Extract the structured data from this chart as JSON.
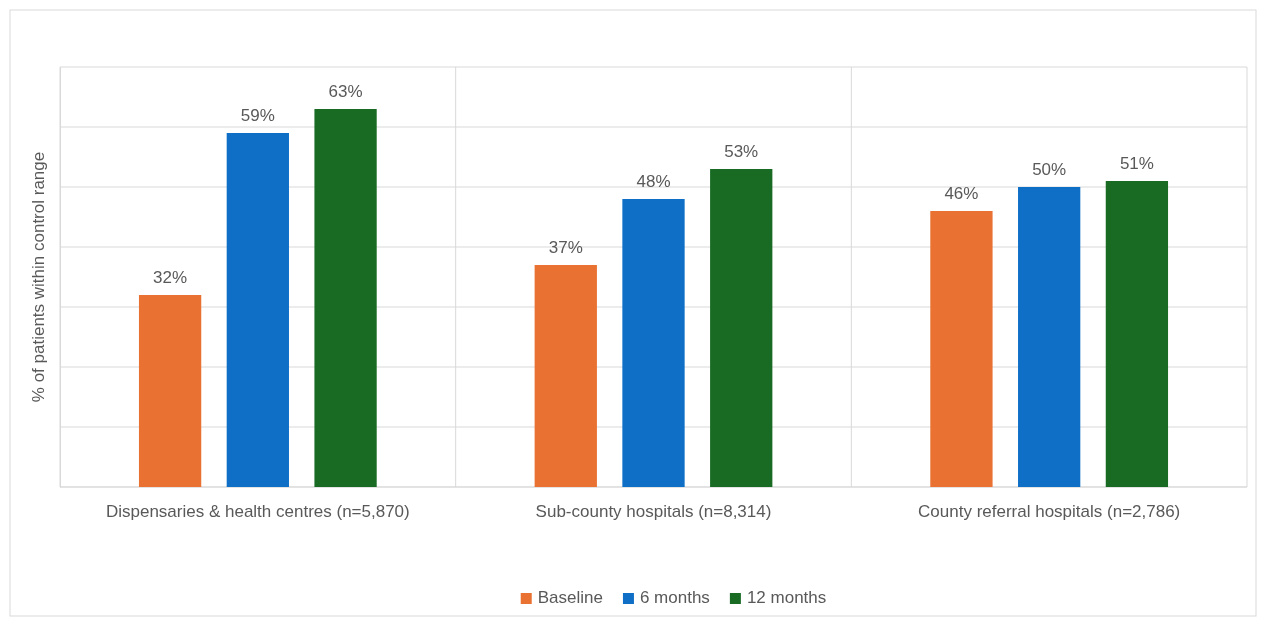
{
  "chart_data": {
    "type": "bar",
    "ylabel": "% of patients within control range",
    "categories": [
      "Dispensaries & health centres (n=5,870)",
      "Sub-county hospitals (n=8,314)",
      "County referral hospitals (n=2,786)"
    ],
    "series": [
      {
        "name": "Baseline",
        "color": "#e97132",
        "values": [
          32,
          37,
          46
        ],
        "value_labels": [
          "32%",
          "37%",
          "46%"
        ]
      },
      {
        "name": "6 months",
        "color": "#0f6fc6",
        "values": [
          59,
          48,
          50
        ],
        "value_labels": [
          "59%",
          "48%",
          "50%"
        ]
      },
      {
        "name": "12 months",
        "color": "#196b24",
        "values": [
          63,
          53,
          51
        ],
        "value_labels": [
          "63%",
          "53%",
          "51%"
        ]
      }
    ],
    "ylim": [
      0,
      70
    ],
    "yticks": [
      {
        "value": 0,
        "label": null
      },
      {
        "value": 10,
        "label": null
      },
      {
        "value": 20,
        "label": null
      },
      {
        "value": 30,
        "label": null
      },
      {
        "value": 40,
        "label": null
      },
      {
        "value": 50,
        "label": null
      },
      {
        "value": 60,
        "label": null
      },
      {
        "value": 70,
        "label": null
      }
    ],
    "grid": true,
    "tick_labels": "x",
    "legend": "bottom"
  }
}
